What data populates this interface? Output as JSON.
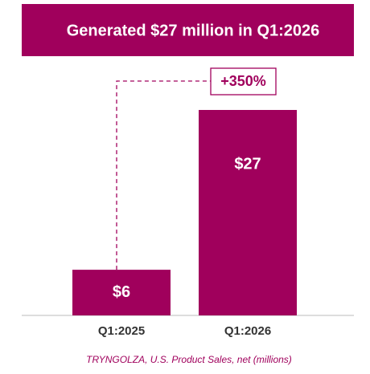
{
  "chart_data": {
    "type": "bar",
    "title": "Generated $27 million in Q1:2026",
    "categories": [
      "Q1:2025",
      "Q1:2026"
    ],
    "values": [
      6,
      27
    ],
    "value_labels": [
      "$6",
      "$27"
    ],
    "color": "#a0005c",
    "annotation": "+350%",
    "caption": "TRYNGOLZA, U.S. Product Sales, net (millions)"
  }
}
